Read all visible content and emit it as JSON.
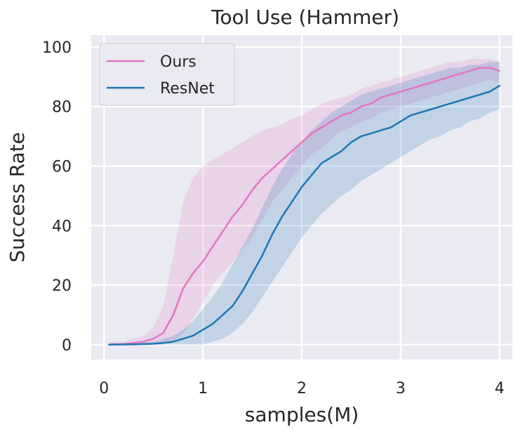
{
  "chart_data": {
    "type": "line",
    "title": "Tool Use (Hammer)",
    "xlabel": "samples(M)",
    "ylabel": "Success Rate",
    "xlim": [
      -0.13,
      4.13
    ],
    "ylim": [
      -5,
      104
    ],
    "xticks": [
      0,
      1,
      2,
      3,
      4
    ],
    "xtick_labels": [
      "0",
      "1",
      "2",
      "3",
      "4"
    ],
    "yticks": [
      0,
      20,
      40,
      60,
      80,
      100
    ],
    "ytick_labels": [
      "0",
      "20",
      "40",
      "60",
      "80",
      "100"
    ],
    "grid": true,
    "legend_position": "top-left",
    "background": "#eaeaf2",
    "series": [
      {
        "name": "Ours",
        "color": "#e377c2",
        "x": [
          0.05,
          0.2,
          0.4,
          0.5,
          0.6,
          0.7,
          0.8,
          0.9,
          1.0,
          1.1,
          1.2,
          1.3,
          1.4,
          1.5,
          1.6,
          1.7,
          1.8,
          1.9,
          2.0,
          2.1,
          2.2,
          2.3,
          2.4,
          2.5,
          2.6,
          2.7,
          2.8,
          2.9,
          3.0,
          3.1,
          3.2,
          3.3,
          3.4,
          3.5,
          3.6,
          3.7,
          3.8,
          3.9,
          4.0
        ],
        "values": [
          0,
          0.2,
          1,
          2,
          4,
          10,
          19,
          24,
          28,
          33,
          38,
          43,
          47,
          52,
          56,
          59,
          62,
          65,
          68,
          71,
          73,
          75,
          77,
          78,
          80,
          81,
          83,
          84,
          85,
          86,
          87,
          88,
          89,
          90,
          91,
          92,
          93,
          93,
          92
        ],
        "lower": [
          0,
          0,
          0,
          0,
          0,
          1,
          4,
          9,
          14,
          20,
          24,
          28,
          32,
          36,
          42,
          48,
          52,
          56,
          60,
          64,
          66,
          69,
          72,
          73,
          75,
          76,
          78,
          79,
          80,
          81,
          82,
          83,
          84,
          85,
          86,
          87,
          88,
          89,
          88
        ],
        "upper": [
          1,
          1,
          3,
          6,
          13,
          30,
          48,
          56,
          60,
          62,
          64,
          66,
          68,
          70,
          72,
          73,
          74,
          76,
          77,
          79,
          81,
          82,
          83,
          84,
          86,
          87,
          88,
          89,
          90,
          91,
          92,
          93,
          94,
          95,
          95,
          96,
          96,
          96,
          95
        ]
      },
      {
        "name": "ResNet",
        "color": "#1f77b4",
        "x": [
          0.05,
          0.3,
          0.5,
          0.6,
          0.7,
          0.8,
          0.9,
          1.0,
          1.1,
          1.2,
          1.3,
          1.4,
          1.5,
          1.6,
          1.7,
          1.8,
          1.9,
          2.0,
          2.1,
          2.2,
          2.3,
          2.4,
          2.5,
          2.6,
          2.7,
          2.8,
          2.9,
          3.0,
          3.1,
          3.2,
          3.3,
          3.4,
          3.5,
          3.6,
          3.7,
          3.8,
          3.9,
          4.0
        ],
        "values": [
          0,
          0.1,
          0.3,
          0.6,
          1,
          2,
          3,
          5,
          7,
          10,
          13,
          18,
          24,
          30,
          37,
          43,
          48,
          53,
          57,
          61,
          63,
          65,
          68,
          70,
          71,
          72,
          73,
          75,
          77,
          78,
          79,
          80,
          81,
          82,
          83,
          84,
          85,
          87
        ],
        "lower": [
          0,
          0,
          0,
          0,
          0,
          0,
          0,
          0,
          1,
          2,
          4,
          7,
          11,
          16,
          21,
          26,
          31,
          36,
          40,
          44,
          47,
          50,
          52,
          55,
          57,
          59,
          61,
          63,
          65,
          67,
          69,
          70,
          72,
          73,
          75,
          76,
          78,
          79
        ],
        "upper": [
          0.5,
          0.5,
          1,
          2,
          3,
          5,
          8,
          12,
          16,
          21,
          27,
          33,
          39,
          46,
          53,
          59,
          64,
          68,
          72,
          75,
          78,
          80,
          82,
          84,
          85,
          86,
          87,
          88,
          89,
          90,
          91,
          92,
          93,
          93,
          94,
          94,
          95,
          95
        ]
      }
    ]
  }
}
